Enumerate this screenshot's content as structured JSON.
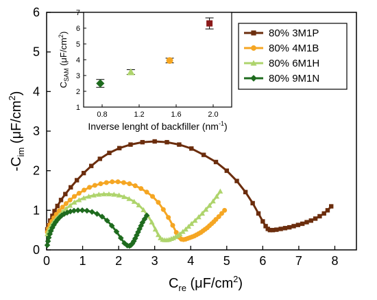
{
  "chart_data": [
    {
      "type": "scatter",
      "xlabel": {
        "main": "C",
        "sub": "re",
        "unit": " (μF/cm",
        "sup": "2",
        "close": ")"
      },
      "ylabel": {
        "main": "-C",
        "sub": "im",
        "unit": " (μF/cm",
        "sup": "2",
        "close": ")"
      },
      "xlim": [
        0,
        8.6
      ],
      "ylim": [
        0,
        6
      ],
      "x_ticks": [
        "0",
        "1",
        "2",
        "3",
        "4",
        "5",
        "6",
        "7",
        "8"
      ],
      "y_ticks": [
        "0",
        "1",
        "2",
        "3",
        "4",
        "5",
        "6"
      ],
      "legend_position": "top-right",
      "series": [
        {
          "name": "80% 3M1P",
          "color": "#6b2d0d",
          "marker": "square",
          "x": [
            0.02,
            0.05,
            0.1,
            0.16,
            0.22,
            0.3,
            0.4,
            0.52,
            0.67,
            0.84,
            1.03,
            1.24,
            1.48,
            1.74,
            2.02,
            2.33,
            2.66,
            3.0,
            3.34,
            3.68,
            4.02,
            4.36,
            4.7,
            5.0,
            5.28,
            5.52,
            5.72,
            5.88,
            6.0,
            6.08,
            6.14,
            6.2,
            6.28,
            6.38,
            6.5,
            6.62,
            6.74,
            6.86,
            6.98,
            7.1,
            7.22,
            7.34,
            7.46,
            7.58,
            7.7,
            7.8,
            7.9
          ],
          "y": [
            0.52,
            0.62,
            0.74,
            0.86,
            0.98,
            1.11,
            1.26,
            1.41,
            1.58,
            1.76,
            1.94,
            2.12,
            2.3,
            2.45,
            2.57,
            2.66,
            2.72,
            2.74,
            2.72,
            2.66,
            2.56,
            2.4,
            2.22,
            2.0,
            1.74,
            1.46,
            1.18,
            0.92,
            0.72,
            0.6,
            0.53,
            0.5,
            0.5,
            0.51,
            0.53,
            0.55,
            0.57,
            0.6,
            0.63,
            0.66,
            0.7,
            0.74,
            0.79,
            0.85,
            0.92,
            1.0,
            1.1
          ]
        },
        {
          "name": "80% 4M1B",
          "color": "#f5a623",
          "marker": "circle",
          "x": [
            0.02,
            0.05,
            0.09,
            0.14,
            0.2,
            0.27,
            0.35,
            0.44,
            0.54,
            0.65,
            0.77,
            0.9,
            1.04,
            1.19,
            1.34,
            1.5,
            1.66,
            1.82,
            1.98,
            2.14,
            2.3,
            2.46,
            2.62,
            2.78,
            2.94,
            3.1,
            3.24,
            3.38,
            3.5,
            3.6,
            3.68,
            3.74,
            3.8,
            3.86,
            3.92,
            3.98,
            4.04,
            4.1,
            4.16,
            4.22,
            4.28,
            4.34,
            4.4,
            4.46,
            4.52,
            4.58,
            4.64,
            4.7,
            4.78,
            4.86,
            4.94
          ],
          "y": [
            0.45,
            0.54,
            0.63,
            0.72,
            0.81,
            0.9,
            0.99,
            1.08,
            1.17,
            1.26,
            1.35,
            1.43,
            1.51,
            1.58,
            1.63,
            1.67,
            1.7,
            1.72,
            1.72,
            1.7,
            1.67,
            1.62,
            1.55,
            1.46,
            1.35,
            1.2,
            1.02,
            0.82,
            0.62,
            0.44,
            0.32,
            0.27,
            0.26,
            0.27,
            0.29,
            0.31,
            0.33,
            0.35,
            0.38,
            0.41,
            0.44,
            0.48,
            0.52,
            0.56,
            0.61,
            0.66,
            0.71,
            0.77,
            0.84,
            0.92,
            1.0
          ]
        },
        {
          "name": "80% 6M1H",
          "color": "#aed46c",
          "marker": "triangle",
          "x": [
            0.02,
            0.05,
            0.09,
            0.14,
            0.2,
            0.27,
            0.35,
            0.44,
            0.54,
            0.65,
            0.77,
            0.9,
            1.03,
            1.17,
            1.31,
            1.45,
            1.59,
            1.73,
            1.87,
            2.01,
            2.15,
            2.29,
            2.43,
            2.56,
            2.69,
            2.81,
            2.92,
            3.02,
            3.1,
            3.16,
            3.22,
            3.28,
            3.34,
            3.4,
            3.46,
            3.52,
            3.58,
            3.64,
            3.7,
            3.78,
            3.86,
            3.94,
            4.02,
            4.12,
            4.22,
            4.32,
            4.42,
            4.52,
            4.62,
            4.72,
            4.82
          ],
          "y": [
            0.4,
            0.48,
            0.56,
            0.64,
            0.72,
            0.8,
            0.88,
            0.96,
            1.04,
            1.12,
            1.2,
            1.26,
            1.31,
            1.35,
            1.38,
            1.4,
            1.41,
            1.41,
            1.4,
            1.38,
            1.34,
            1.29,
            1.22,
            1.13,
            1.01,
            0.86,
            0.7,
            0.52,
            0.38,
            0.3,
            0.26,
            0.25,
            0.25,
            0.26,
            0.28,
            0.3,
            0.33,
            0.36,
            0.4,
            0.46,
            0.52,
            0.59,
            0.66,
            0.74,
            0.83,
            0.92,
            1.02,
            1.12,
            1.23,
            1.35,
            1.48
          ]
        },
        {
          "name": "80% 9M1N",
          "color": "#1e6b1e",
          "marker": "diamond",
          "x": [
            0.02,
            0.04,
            0.06,
            0.09,
            0.12,
            0.16,
            0.2,
            0.25,
            0.3,
            0.36,
            0.42,
            0.49,
            0.57,
            0.66,
            0.76,
            0.87,
            0.99,
            1.12,
            1.26,
            1.4,
            1.54,
            1.68,
            1.81,
            1.94,
            2.06,
            2.16,
            2.24,
            2.3,
            2.34,
            2.38,
            2.42,
            2.46,
            2.5,
            2.54,
            2.58,
            2.62,
            2.66,
            2.72,
            2.78
          ],
          "y": [
            0.12,
            0.22,
            0.31,
            0.4,
            0.48,
            0.56,
            0.63,
            0.7,
            0.76,
            0.82,
            0.87,
            0.91,
            0.94,
            0.97,
            0.99,
            1.0,
            1.0,
            0.99,
            0.96,
            0.91,
            0.84,
            0.74,
            0.61,
            0.46,
            0.3,
            0.17,
            0.11,
            0.1,
            0.12,
            0.16,
            0.22,
            0.29,
            0.37,
            0.45,
            0.53,
            0.61,
            0.69,
            0.78,
            0.87
          ]
        }
      ]
    },
    {
      "type": "scatter",
      "xlabel": {
        "text": "Inverse lenght of backfiller (nm",
        "sup": "-1",
        "close": ")"
      },
      "ylabel": {
        "main": "C",
        "sub": "SAM",
        "unit": " (μF/cm",
        "sup": "2",
        "close": ")"
      },
      "xlim": [
        0.6,
        2.2
      ],
      "ylim": [
        1,
        7
      ],
      "x_ticks": [
        "0.8",
        "1.2",
        "1.6",
        "2.0"
      ],
      "y_ticks": [
        "1",
        "2",
        "3",
        "4",
        "5",
        "6",
        "7"
      ],
      "points": [
        {
          "x": 0.78,
          "y": 2.5,
          "err": 0.25,
          "color": "#1e6b1e",
          "marker": "diamond"
        },
        {
          "x": 1.11,
          "y": 3.22,
          "err": 0.15,
          "color": "#aed46c",
          "marker": "triangle"
        },
        {
          "x": 1.53,
          "y": 3.95,
          "err": 0.15,
          "color": "#f5a623",
          "marker": "circle"
        },
        {
          "x": 1.96,
          "y": 6.3,
          "err": 0.35,
          "color": "#8b1a1a",
          "marker": "square"
        }
      ]
    }
  ]
}
